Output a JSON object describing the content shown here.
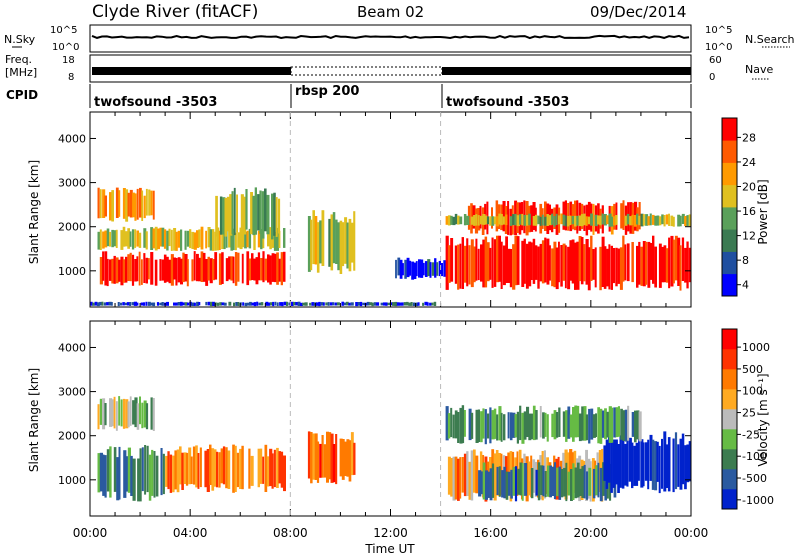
{
  "header": {
    "station": "Clyde River (fitACF)",
    "beam": "Beam 02",
    "date": "09/Dec/2014"
  },
  "noise_panel": {
    "left_label": "N.Sky",
    "right_label": "N.Search",
    "left_ticks": [
      "10^5",
      "10^0"
    ],
    "right_ticks": [
      "10^5",
      "10^0"
    ]
  },
  "freq_panel": {
    "left_label_1": "Freq.",
    "left_label_2": "[MHz]",
    "left_ticks": [
      "18",
      "8"
    ],
    "right_label": "Nave",
    "right_ticks": [
      "60",
      "0"
    ]
  },
  "cpid_panel": {
    "label": "CPID",
    "segments": [
      {
        "start_hour": 0,
        "end_hour": 8,
        "name": "twofsound -3503"
      },
      {
        "start_hour": 8,
        "end_hour": 14,
        "name": "rbsp 200"
      },
      {
        "start_hour": 14,
        "end_hour": 24,
        "name": "twofsound -3503"
      }
    ]
  },
  "colors": {
    "power_scale": [
      "#0000ff",
      "#1f4fa0",
      "#3a7a52",
      "#5aa05a",
      "#e0c020",
      "#ff9a00",
      "#ff5a00",
      "#ff0000"
    ],
    "velocity_scale": [
      "#0022cc",
      "#2a5aa0",
      "#3c7c50",
      "#66bb44",
      "#bbbbbb",
      "#ffaa22",
      "#ff7a00",
      "#ff3300",
      "#ff0000"
    ],
    "marker_line": "#bbbbbb"
  },
  "chart_data": [
    {
      "type": "heatmap",
      "name": "power",
      "ylabel": "Slant Range [km]",
      "xlabel": "",
      "x_range_hours": [
        0,
        24
      ],
      "ylim": [
        180,
        4600
      ],
      "yticks": [
        "1000",
        "2000",
        "3000",
        "4000"
      ],
      "colorbar": {
        "title": "Power [dB]",
        "ticks": [
          "28",
          "24",
          "20",
          "16",
          "12",
          "8",
          "4"
        ]
      },
      "regions": [
        {
          "t0": 0.3,
          "t1": 7.8,
          "r0": 650,
          "r1": 1450,
          "level": 0.92
        },
        {
          "t0": 0.3,
          "t1": 7.8,
          "r0": 1450,
          "r1": 2000,
          "level": 0.55
        },
        {
          "t0": 0.3,
          "t1": 2.6,
          "r0": 2100,
          "r1": 2900,
          "level": 0.7
        },
        {
          "t0": 5.0,
          "t1": 7.6,
          "r0": 1700,
          "r1": 2900,
          "level": 0.45
        },
        {
          "t0": 8.7,
          "t1": 10.6,
          "r0": 900,
          "r1": 2400,
          "level": 0.5
        },
        {
          "t0": 12.0,
          "t1": 14.2,
          "r0": 800,
          "r1": 1300,
          "level": 0.15
        },
        {
          "t0": 14.2,
          "t1": 24.0,
          "r0": 550,
          "r1": 1800,
          "level": 0.95
        },
        {
          "t0": 15.0,
          "t1": 22.0,
          "r0": 1800,
          "r1": 2600,
          "level": 0.88
        },
        {
          "t0": 14.2,
          "t1": 24.0,
          "r0": 2000,
          "r1": 2300,
          "level": 0.5
        },
        {
          "t0": 0.0,
          "t1": 14.0,
          "r0": 200,
          "r1": 300,
          "level": 0.15
        }
      ]
    },
    {
      "type": "heatmap",
      "name": "velocity",
      "ylabel": "Slant Range [km]",
      "xlabel": "Time UT",
      "x_range_hours": [
        0,
        24
      ],
      "xticks": [
        "00:00",
        "04:00",
        "08:00",
        "12:00",
        "16:00",
        "20:00",
        "00:00"
      ],
      "ylim": [
        180,
        4600
      ],
      "yticks": [
        "1000",
        "2000",
        "3000",
        "4000"
      ],
      "colorbar": {
        "title": "Velocity [m s⁻¹]",
        "ticks": [
          "1000",
          "500",
          "100",
          "25",
          "-25",
          "-100",
          "-500",
          "-1000"
        ]
      },
      "regions": [
        {
          "t0": 0.3,
          "t1": 3.0,
          "r0": 500,
          "r1": 1800,
          "level": 0.25
        },
        {
          "t0": 3.0,
          "t1": 7.8,
          "r0": 700,
          "r1": 1800,
          "level": 0.72
        },
        {
          "t0": 0.3,
          "t1": 2.6,
          "r0": 2100,
          "r1": 2900,
          "level": 0.45
        },
        {
          "t0": 8.7,
          "t1": 10.6,
          "r0": 900,
          "r1": 2100,
          "level": 0.78
        },
        {
          "t0": 14.2,
          "t1": 20.5,
          "r0": 500,
          "r1": 1700,
          "level": 0.65
        },
        {
          "t0": 15.5,
          "t1": 21.0,
          "r0": 500,
          "r1": 1400,
          "level": 0.25
        },
        {
          "t0": 20.5,
          "t1": 24.0,
          "r0": 700,
          "r1": 2100,
          "level": 0.02
        },
        {
          "t0": 14.2,
          "t1": 22.0,
          "r0": 1800,
          "r1": 2700,
          "level": 0.3
        }
      ]
    }
  ]
}
